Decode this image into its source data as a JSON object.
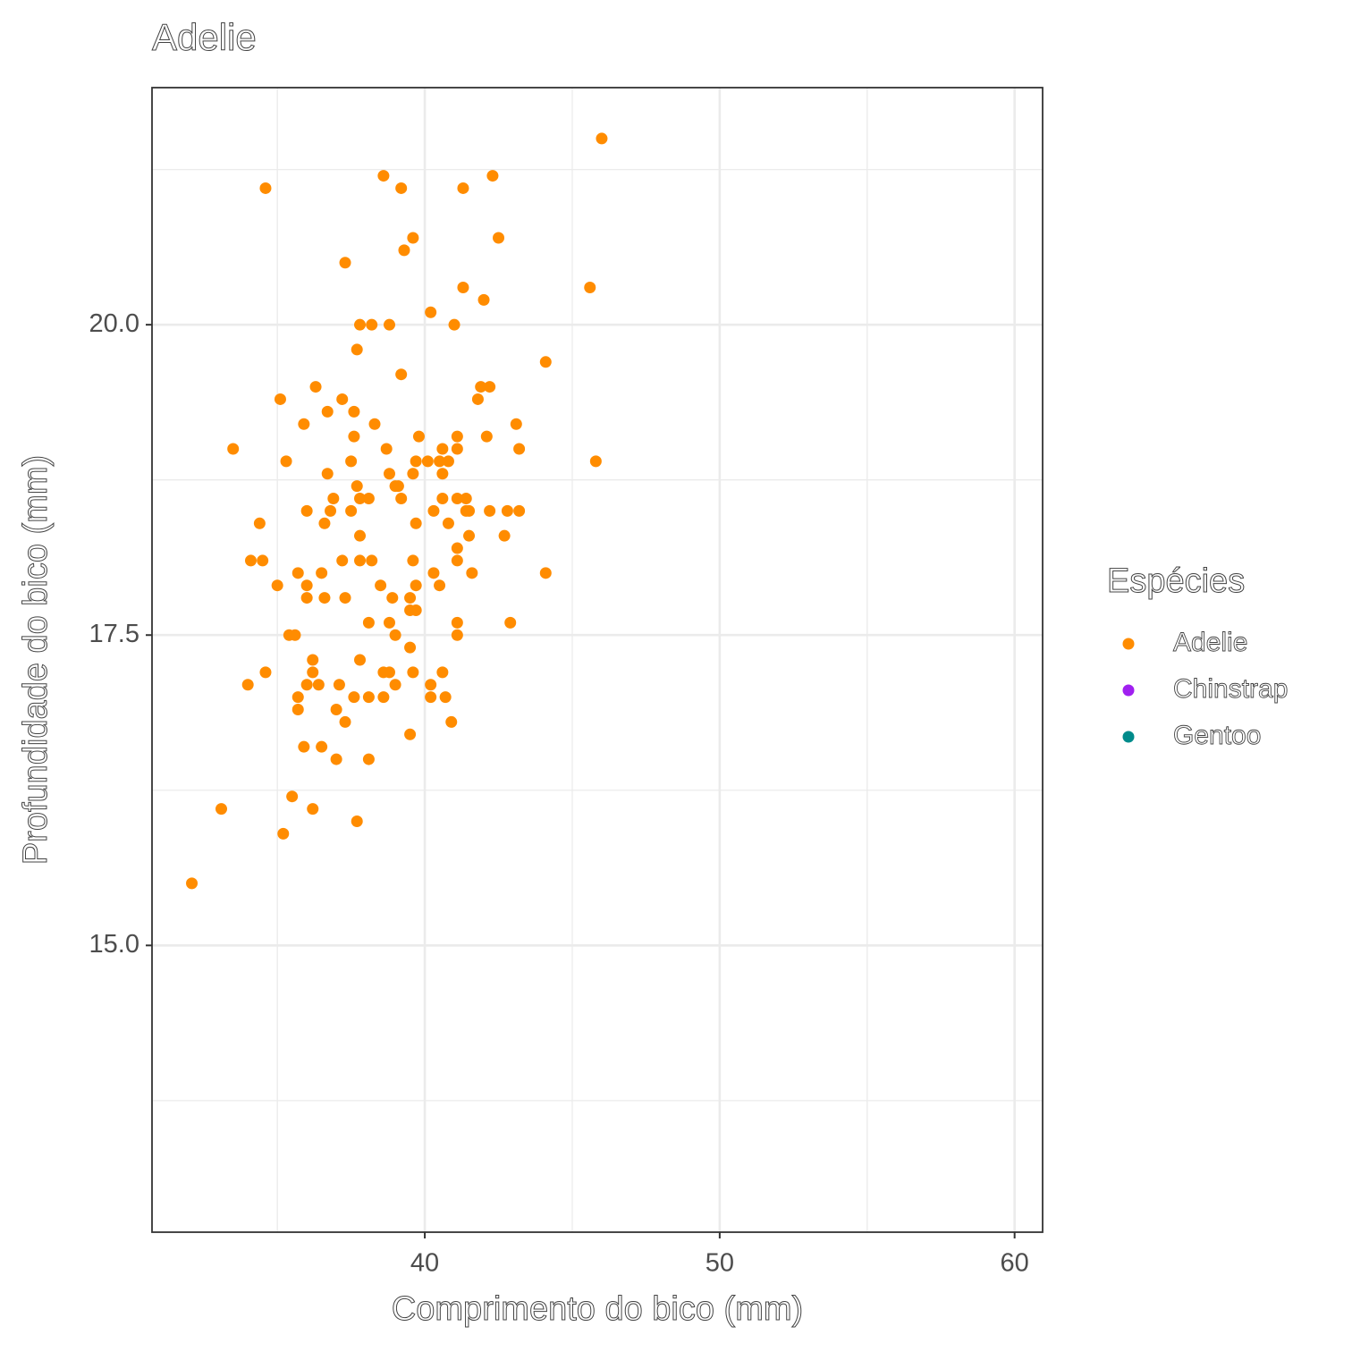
{
  "chart_data": {
    "type": "scatter",
    "title": "Adelie",
    "x_label": "Comprimento do bico (mm)",
    "y_label": "Profundidade do bico (mm)",
    "legend_title": "Espécies",
    "legend": "right",
    "grid": true,
    "xlim": [
      30.75,
      60.95
    ],
    "ylim": [
      12.69,
      21.91
    ],
    "xticks": [
      40,
      50,
      60
    ],
    "yticks": [
      {
        "value": 15,
        "label": "15.0"
      },
      {
        "value": 17.5,
        "label": "17.5"
      },
      {
        "value": 20,
        "label": "20.0"
      }
    ],
    "minor_xticks": [
      35,
      45,
      55
    ],
    "minor_yticks": [
      13.75,
      16.25,
      18.75,
      21.25
    ],
    "series": [
      {
        "name": "Adelie",
        "color": "#FF8C00",
        "x": [
          46.0,
          34.6,
          38.6,
          39.2,
          41.3,
          42.3,
          39.6,
          39.3,
          42.5,
          37.3,
          41.3,
          45.6,
          42.0,
          40.2,
          37.8,
          38.2,
          38.8,
          41.0,
          37.7,
          44.1,
          39.2,
          36.3,
          41.9,
          42.2,
          35.1,
          37.2,
          41.8,
          36.7,
          37.6,
          35.9,
          38.3,
          43.1,
          37.6,
          39.8,
          41.1,
          42.1,
          33.5,
          38.7,
          40.6,
          41.1,
          43.2,
          35.3,
          37.5,
          39.7,
          40.1,
          40.5,
          40.8,
          45.8,
          36.7,
          38.8,
          39.6,
          40.6,
          37.7,
          39.0,
          39.1,
          36.9,
          37.8,
          38.1,
          39.2,
          40.6,
          41.1,
          41.4,
          36.0,
          36.8,
          37.5,
          40.3,
          41.4,
          41.5,
          42.2,
          42.8,
          43.2,
          34.4,
          36.6,
          39.7,
          40.8,
          37.8,
          41.5,
          42.7,
          41.1,
          34.1,
          34.5,
          37.2,
          37.8,
          38.2,
          39.6,
          41.1,
          35.7,
          36.5,
          40.3,
          41.6,
          44.1,
          35.0,
          36.0,
          38.5,
          39.7,
          40.5,
          36.0,
          36.6,
          37.3,
          38.9,
          39.5,
          39.5,
          39.7,
          38.1,
          38.8,
          41.1,
          42.9,
          35.4,
          35.6,
          39.0,
          41.1,
          39.5,
          36.2,
          37.8,
          34.6,
          36.2,
          38.6,
          38.8,
          39.6,
          40.6,
          34.0,
          36.0,
          36.4,
          37.1,
          39.0,
          40.2,
          35.7,
          37.6,
          38.1,
          38.6,
          40.2,
          40.7,
          35.7,
          37.0,
          37.3,
          40.9,
          39.5,
          35.9,
          36.5,
          37.0,
          38.1,
          35.5,
          33.1,
          36.2,
          37.7,
          35.2,
          32.1
        ],
        "values": [
          21.5,
          21.1,
          21.2,
          21.1,
          21.1,
          21.2,
          20.7,
          20.6,
          20.7,
          20.5,
          20.3,
          20.3,
          20.2,
          20.1,
          20.0,
          20.0,
          20.0,
          20.0,
          19.8,
          19.7,
          19.6,
          19.5,
          19.5,
          19.5,
          19.4,
          19.4,
          19.4,
          19.3,
          19.3,
          19.2,
          19.2,
          19.2,
          19.1,
          19.1,
          19.1,
          19.1,
          19.0,
          19.0,
          19.0,
          19.0,
          19.0,
          18.9,
          18.9,
          18.9,
          18.9,
          18.9,
          18.9,
          18.9,
          18.8,
          18.8,
          18.8,
          18.8,
          18.7,
          18.7,
          18.7,
          18.6,
          18.6,
          18.6,
          18.6,
          18.6,
          18.6,
          18.6,
          18.5,
          18.5,
          18.5,
          18.5,
          18.5,
          18.5,
          18.5,
          18.5,
          18.5,
          18.4,
          18.4,
          18.4,
          18.4,
          18.3,
          18.3,
          18.3,
          18.2,
          18.1,
          18.1,
          18.1,
          18.1,
          18.1,
          18.1,
          18.1,
          18.0,
          18.0,
          18.0,
          18.0,
          18.0,
          17.9,
          17.9,
          17.9,
          17.9,
          17.9,
          17.8,
          17.8,
          17.8,
          17.8,
          17.8,
          17.7,
          17.7,
          17.6,
          17.6,
          17.6,
          17.6,
          17.5,
          17.5,
          17.5,
          17.5,
          17.4,
          17.3,
          17.3,
          17.2,
          17.2,
          17.2,
          17.2,
          17.2,
          17.2,
          17.1,
          17.1,
          17.1,
          17.1,
          17.1,
          17.1,
          17.0,
          17.0,
          17.0,
          17.0,
          17.0,
          17.0,
          16.9,
          16.9,
          16.8,
          16.8,
          16.7,
          16.6,
          16.6,
          16.5,
          16.5,
          16.2,
          16.1,
          16.1,
          16.0,
          15.9,
          15.5
        ]
      },
      {
        "name": "Chinstrap",
        "color": "#A020F0",
        "x": [],
        "values": []
      },
      {
        "name": "Gentoo",
        "color": "#008B8B",
        "x": [],
        "values": []
      }
    ]
  }
}
